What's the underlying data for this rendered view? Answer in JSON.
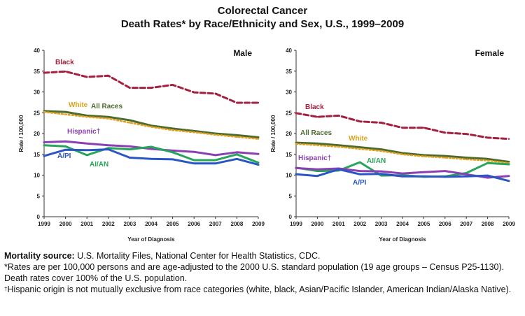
{
  "title": {
    "line1": "Colorectal Cancer",
    "line2": "Death Rates* by Race/Ethnicity and Sex, U.S., 1999–2009"
  },
  "chart_data": [
    {
      "type": "line",
      "panel_label": "Male",
      "x": [
        1999,
        2000,
        2001,
        2002,
        2003,
        2004,
        2005,
        2006,
        2007,
        2008,
        2009
      ],
      "ylim": [
        0,
        40
      ],
      "yticks": [
        0,
        5,
        10,
        15,
        20,
        25,
        30,
        35,
        40
      ],
      "xlabel": "Year of Diagnosis",
      "ylabel": "Rate / 100,000",
      "series": [
        {
          "name": "Black",
          "color": "#a3213f",
          "style": "dashed",
          "values": [
            34.6,
            34.9,
            33.6,
            33.9,
            31.0,
            31.0,
            31.7,
            29.9,
            29.6,
            27.4,
            27.4
          ]
        },
        {
          "name": "All Races",
          "color": "#4d6b2c",
          "style": "solid",
          "values": [
            25.4,
            25.2,
            24.3,
            24.0,
            23.2,
            21.9,
            21.2,
            20.6,
            20.0,
            19.6,
            19.1
          ]
        },
        {
          "name": "White",
          "color": "#e0a020",
          "style": "dotted",
          "values": [
            25.2,
            24.6,
            24.0,
            23.6,
            22.6,
            21.6,
            20.8,
            20.3,
            19.7,
            19.2,
            18.7
          ]
        },
        {
          "name": "Hispanic†",
          "color": "#8b3fb3",
          "style": "solid",
          "values": [
            17.9,
            18.1,
            17.6,
            17.2,
            16.9,
            16.3,
            15.9,
            15.6,
            14.8,
            15.5,
            15.1
          ]
        },
        {
          "name": "AI/AN",
          "color": "#27a55a",
          "style": "solid",
          "values": [
            17.2,
            16.9,
            14.8,
            16.5,
            16.2,
            16.8,
            15.5,
            13.6,
            13.6,
            15.0,
            13.0
          ]
        },
        {
          "name": "A/PI",
          "color": "#2a56c4",
          "style": "solid",
          "values": [
            14.6,
            16.1,
            16.0,
            16.2,
            14.2,
            13.9,
            13.8,
            12.8,
            12.8,
            13.9,
            12.5
          ]
        }
      ],
      "labels": {
        "Black": "Black",
        "All Races": "All Races",
        "White": "White",
        "Hispanic†": "Hispanic†",
        "AI/AN": "AI/AN",
        "A/PI": "A/PI"
      }
    },
    {
      "type": "line",
      "panel_label": "Female",
      "x": [
        1999,
        2000,
        2001,
        2002,
        2003,
        2004,
        2005,
        2006,
        2007,
        2008,
        2009
      ],
      "ylim": [
        0,
        40
      ],
      "yticks": [
        0,
        5,
        10,
        15,
        20,
        25,
        30,
        35,
        40
      ],
      "xlabel": "Year of Diagnosis",
      "ylabel": "Rate / 100,000",
      "series": [
        {
          "name": "Black",
          "color": "#a3213f",
          "style": "dashed",
          "values": [
            24.9,
            24.0,
            24.3,
            22.9,
            22.6,
            21.4,
            21.4,
            20.2,
            19.9,
            19.0,
            18.7
          ]
        },
        {
          "name": "All Races",
          "color": "#4d6b2c",
          "style": "solid",
          "values": [
            17.8,
            17.6,
            17.2,
            16.7,
            16.2,
            15.3,
            14.8,
            14.6,
            14.2,
            13.9,
            13.2
          ]
        },
        {
          "name": "White",
          "color": "#e0a020",
          "style": "dotted",
          "values": [
            17.5,
            17.2,
            16.8,
            16.3,
            15.8,
            15.0,
            14.5,
            14.2,
            13.8,
            13.5,
            12.9
          ]
        },
        {
          "name": "AI/AN",
          "color": "#27a55a",
          "style": "solid",
          "values": [
            11.8,
            11.0,
            11.1,
            13.1,
            9.9,
            10.0,
            9.6,
            9.7,
            10.5,
            12.9,
            12.6
          ]
        },
        {
          "name": "Hispanic†",
          "color": "#8b3fb3",
          "style": "solid",
          "values": [
            11.7,
            11.4,
            11.6,
            11.0,
            10.9,
            10.4,
            10.7,
            11.0,
            10.2,
            9.4,
            9.8
          ]
        },
        {
          "name": "A/PI",
          "color": "#2a56c4",
          "style": "solid",
          "values": [
            10.2,
            9.8,
            11.4,
            10.2,
            10.3,
            9.7,
            9.7,
            9.6,
            9.7,
            9.9,
            8.6
          ]
        }
      ],
      "labels": {
        "Black": "Black",
        "All Races": "All Races",
        "White": "White",
        "Hispanic†": "Hispanic†",
        "AI/AN": "AI/AN",
        "A/PI": "A/PI"
      }
    }
  ],
  "notes": {
    "source_label": "Mortality source:",
    "source_text": " U.S. Mortality Files, National Center for Health Statistics, CDC.",
    "rates_note": "*Rates are per 100,000 persons and are age-adjusted to the 2000 U.S. standard population (19 age groups – Census P25-1130). Death rates cover 100% of the U.S. population.",
    "hispanic_mark": "†",
    "hispanic_note": "Hispanic origin is not mutually exclusive from race categories (white, black, Asian/Pacific Islander, American Indian/Alaska Native)."
  }
}
